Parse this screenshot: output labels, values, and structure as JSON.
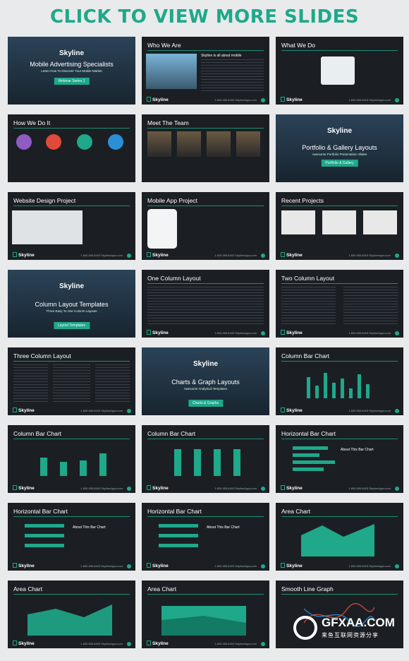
{
  "banner": "CLICK TO VIEW MORE SLIDES",
  "brand": "Skyline",
  "contact": "1.800.555.8403   SkylineApps.com",
  "slides": {
    "s1": {
      "title": "Mobile Advertising Specialists",
      "sub": "Learn How To Discover Your Mobile Market",
      "btn": "Webinar Series 1"
    },
    "s2": {
      "title": "Who We Are",
      "sub": "Skyline is all about mobile"
    },
    "s3": {
      "title": "What We Do"
    },
    "s4": {
      "title": "How We Do It"
    },
    "s5": {
      "title": "Meet The Team"
    },
    "s6": {
      "title": "Portfolio & Gallery Layouts",
      "sub": "Awesome Portfolio Presentation Slides",
      "btn": "Portfolio & Gallery"
    },
    "s7": {
      "title": "Website Design Project"
    },
    "s8": {
      "title": "Mobile App Project"
    },
    "s9": {
      "title": "Recent Projects"
    },
    "s10": {
      "title": "Column Layout Templates",
      "sub": "Three Easy To Use Column Layouts",
      "btn": "Layout Templates"
    },
    "s11": {
      "title": "One Column Layout"
    },
    "s12": {
      "title": "Two Column Layout"
    },
    "s13": {
      "title": "Three Column Layout"
    },
    "s14": {
      "title": "Charts & Graph Layouts",
      "sub": "Awesome Analytical Templates",
      "btn": "Charts & Graphs"
    },
    "s15": {
      "title": "Column Bar Chart"
    },
    "s16": {
      "title": "Column Bar Chart"
    },
    "s17": {
      "title": "Column Bar Chart"
    },
    "s18": {
      "title": "Horizontal Bar Chart",
      "about": "About This Bar Chart"
    },
    "s19": {
      "title": "Horizontal Bar Chart",
      "about": "About This Bar Chart"
    },
    "s20": {
      "title": "Horizontal Bar Chart",
      "about": "About This Bar Chart"
    },
    "s21": {
      "title": "Area Chart"
    },
    "s22": {
      "title": "Area Chart"
    },
    "s23": {
      "title": "Area Chart"
    },
    "s24": {
      "title": "Smooth Line Graph"
    }
  },
  "watermark": {
    "text": "GFXAA.COM",
    "sub": "来鱼互联网资源分享"
  },
  "colors": {
    "accent": "#1fa88a",
    "slide_bg": "#1b1f24"
  }
}
